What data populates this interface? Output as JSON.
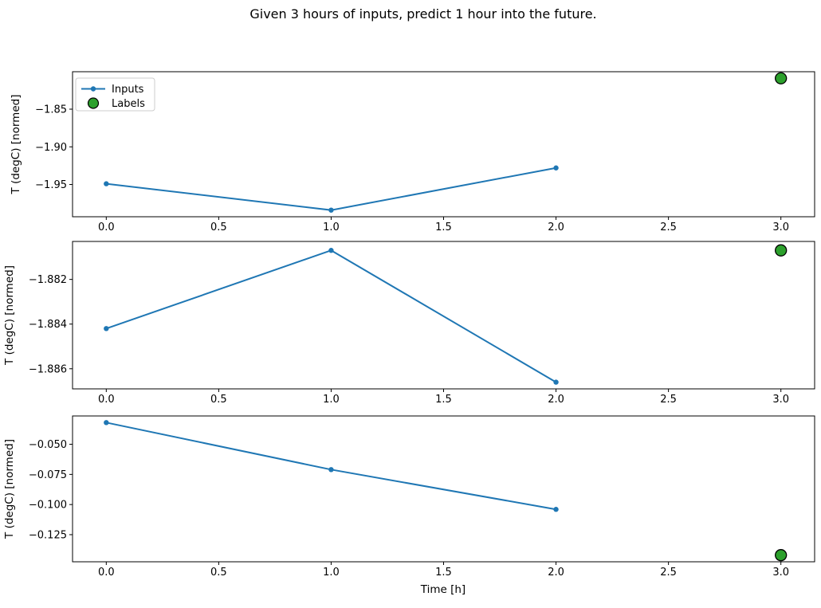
{
  "figure": {
    "title": "Given 3 hours of inputs, predict 1 hour into the future.",
    "xlabel": "Time [h]",
    "background": "#ffffff"
  },
  "colors": {
    "inputs_line": "#1f77b4",
    "labels_fill": "#2ca02c",
    "labels_edge": "#000000",
    "axis": "#000000",
    "legend_border": "#cccccc"
  },
  "legend": {
    "position": "upper-left-of-first-subplot",
    "items": [
      {
        "label": "Inputs",
        "marker": "line-with-dot",
        "color": "#1f77b4"
      },
      {
        "label": "Labels",
        "marker": "filled-circle",
        "color": "#2ca02c"
      }
    ]
  },
  "chart_data": [
    {
      "type": "line",
      "title": "",
      "xlabel": "",
      "ylabel": "T (degC) [normed]",
      "grid": false,
      "legend": true,
      "xlim": [
        -0.15,
        3.15
      ],
      "ylim": [
        -1.9928,
        -1.8003
      ],
      "x_ticks": [
        0.0,
        0.5,
        1.0,
        1.5,
        2.0,
        2.5,
        3.0
      ],
      "x_tick_labels": [
        "0.0",
        "0.5",
        "1.0",
        "1.5",
        "2.0",
        "2.5",
        "3.0"
      ],
      "y_ticks": [
        -1.85,
        -1.9,
        -1.95
      ],
      "y_tick_labels": [
        "−1.85",
        "−1.90",
        "−1.95"
      ],
      "series": [
        {
          "name": "Inputs",
          "kind": "line+marker",
          "x": [
            0,
            1,
            2
          ],
          "values": [
            -1.949,
            -1.984,
            -1.928
          ]
        },
        {
          "name": "Labels",
          "kind": "scatter",
          "x": [
            3
          ],
          "values": [
            -1.809
          ]
        }
      ]
    },
    {
      "type": "line",
      "title": "",
      "xlabel": "",
      "ylabel": "T (degC) [normed]",
      "grid": false,
      "legend": false,
      "xlim": [
        -0.15,
        3.15
      ],
      "ylim": [
        -1.8869,
        -1.8803
      ],
      "x_ticks": [
        0.0,
        0.5,
        1.0,
        1.5,
        2.0,
        2.5,
        3.0
      ],
      "x_tick_labels": [
        "0.0",
        "0.5",
        "1.0",
        "1.5",
        "2.0",
        "2.5",
        "3.0"
      ],
      "y_ticks": [
        -1.882,
        -1.884,
        -1.886
      ],
      "y_tick_labels": [
        "−1.882",
        "−1.884",
        "−1.886"
      ],
      "series": [
        {
          "name": "Inputs",
          "kind": "line+marker",
          "x": [
            0,
            1,
            2
          ],
          "values": [
            -1.8842,
            -1.8807,
            -1.8866
          ]
        },
        {
          "name": "Labels",
          "kind": "scatter",
          "x": [
            3
          ],
          "values": [
            -1.8807
          ]
        }
      ]
    },
    {
      "type": "line",
      "title": "",
      "xlabel": "Time [h]",
      "ylabel": "T (degC) [normed]",
      "grid": false,
      "legend": false,
      "xlim": [
        -0.15,
        3.15
      ],
      "ylim": [
        -0.1475,
        -0.0265
      ],
      "x_ticks": [
        0.0,
        0.5,
        1.0,
        1.5,
        2.0,
        2.5,
        3.0
      ],
      "x_tick_labels": [
        "0.0",
        "0.5",
        "1.0",
        "1.5",
        "2.0",
        "2.5",
        "3.0"
      ],
      "y_ticks": [
        -0.05,
        -0.075,
        -0.1,
        -0.125
      ],
      "y_tick_labels": [
        "−0.050",
        "−0.075",
        "−0.100",
        "−0.125"
      ],
      "series": [
        {
          "name": "Inputs",
          "kind": "line+marker",
          "x": [
            0,
            1,
            2
          ],
          "values": [
            -0.032,
            -0.071,
            -0.104
          ]
        },
        {
          "name": "Labels",
          "kind": "scatter",
          "x": [
            3
          ],
          "values": [
            -0.142
          ]
        }
      ]
    }
  ]
}
